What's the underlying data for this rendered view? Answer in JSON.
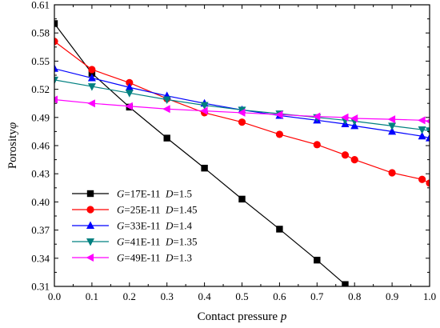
{
  "chart_data": {
    "type": "line",
    "xlabel_text": "Contact pressure ",
    "xlabel_var": "p",
    "ylabel_text": "Porosity",
    "ylabel_var": "φ",
    "xlim": [
      0.0,
      1.0
    ],
    "ylim": [
      0.31,
      0.61
    ],
    "x_ticks": [
      "0.0",
      "0.1",
      "0.2",
      "0.3",
      "0.4",
      "0.5",
      "0.6",
      "0.7",
      "0.8",
      "0.9",
      "1.0"
    ],
    "y_ticks": [
      "0.31",
      "0.34",
      "0.37",
      "0.40",
      "0.43",
      "0.46",
      "0.49",
      "0.52",
      "0.55",
      "0.58",
      "0.61"
    ],
    "legend_position": "lower-left",
    "grid": false,
    "series": [
      {
        "name": "G=17E-11  D=1.5",
        "g_var": "G",
        "g_val": "=17E-11",
        "d_var": "D",
        "d_val": "=1.5",
        "color": "#000000",
        "marker": "square",
        "x": [
          0.0,
          0.1,
          0.2,
          0.3,
          0.4,
          0.5,
          0.6,
          0.7,
          0.775
        ],
        "y": [
          0.59,
          0.537,
          0.501,
          0.468,
          0.436,
          0.403,
          0.371,
          0.338,
          0.312
        ]
      },
      {
        "name": "G=25E-11  D=1.45",
        "g_var": "G",
        "g_val": "=25E-11",
        "d_var": "D",
        "d_val": "=1.45",
        "color": "#ff0000",
        "marker": "circle",
        "x": [
          0.0,
          0.1,
          0.2,
          0.3,
          0.4,
          0.5,
          0.6,
          0.7,
          0.775,
          0.8,
          0.9,
          0.98,
          1.0
        ],
        "y": [
          0.571,
          0.541,
          0.527,
          0.51,
          0.495,
          0.485,
          0.472,
          0.461,
          0.45,
          0.445,
          0.431,
          0.424,
          0.42
        ]
      },
      {
        "name": "G=33E-11  D=1.4",
        "g_var": "G",
        "g_val": "=33E-11",
        "d_var": "D",
        "d_val": "=1.4",
        "color": "#0000ff",
        "marker": "triangle-up",
        "x": [
          0.0,
          0.1,
          0.2,
          0.3,
          0.4,
          0.5,
          0.6,
          0.7,
          0.775,
          0.8,
          0.9,
          0.98,
          1.0
        ],
        "y": [
          0.542,
          0.532,
          0.522,
          0.513,
          0.505,
          0.498,
          0.492,
          0.487,
          0.483,
          0.481,
          0.475,
          0.47,
          0.468
        ]
      },
      {
        "name": "G=41E-11  D=1.35",
        "g_var": "G",
        "g_val": "=41E-11",
        "d_var": "D",
        "d_val": "=1.35",
        "color": "#008080",
        "marker": "triangle-down",
        "x": [
          0.0,
          0.1,
          0.2,
          0.3,
          0.4,
          0.5,
          0.6,
          0.7,
          0.775,
          0.8,
          0.9,
          0.98,
          1.0
        ],
        "y": [
          0.53,
          0.523,
          0.516,
          0.509,
          0.503,
          0.498,
          0.494,
          0.49,
          0.487,
          0.486,
          0.481,
          0.477,
          0.476
        ]
      },
      {
        "name": "G=49E-11  D=1.3",
        "g_var": "G",
        "g_val": "=49E-11",
        "d_var": "D",
        "d_val": "=1.3",
        "color": "#ff00ff",
        "marker": "triangle-left",
        "x": [
          0.0,
          0.1,
          0.2,
          0.3,
          0.4,
          0.5,
          0.6,
          0.7,
          0.775,
          0.8,
          0.9,
          0.98,
          1.0
        ],
        "y": [
          0.509,
          0.505,
          0.502,
          0.499,
          0.497,
          0.495,
          0.493,
          0.491,
          0.49,
          0.489,
          0.488,
          0.487,
          0.486
        ]
      }
    ]
  }
}
